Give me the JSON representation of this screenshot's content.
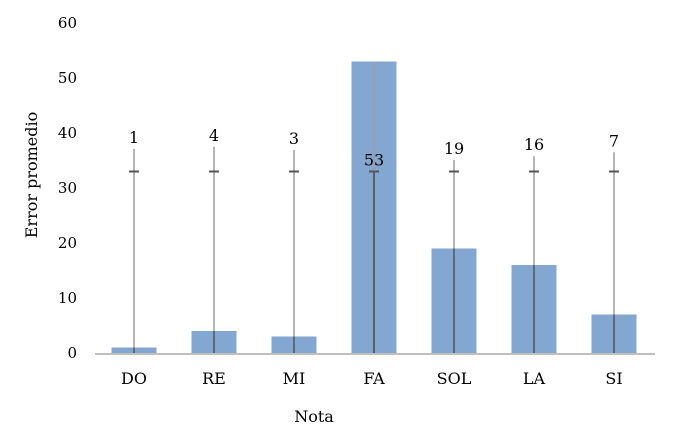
{
  "chart_data": {
    "type": "bar",
    "title": "",
    "xlabel": "Nota",
    "ylabel": "Error promedio",
    "ylim": [
      0,
      60
    ],
    "yticks": [
      0,
      10,
      20,
      30,
      40,
      50,
      60
    ],
    "grid": false,
    "categories": [
      "DO",
      "RE",
      "MI",
      "FA",
      "SOL",
      "LA",
      "SI"
    ],
    "values": [
      1,
      4,
      3,
      53,
      19,
      16,
      7
    ],
    "data_labels": [
      "1",
      "4",
      "3",
      "53",
      "19",
      "16",
      "7"
    ],
    "error_bars": [
      {
        "low": 0,
        "high": 37.1,
        "cap": 33
      },
      {
        "low": 0,
        "high": 37.5,
        "cap": 33
      },
      {
        "low": 0,
        "high": 36.9,
        "cap": 33
      },
      {
        "low": 0,
        "high": 33,
        "cap": 33
      },
      {
        "low": 0,
        "high": 35.1,
        "cap": 33
      },
      {
        "low": 0,
        "high": 35.8,
        "cap": 33
      },
      {
        "low": 0,
        "high": 36.5,
        "cap": 33
      }
    ],
    "colors": {
      "bar": "#84a7d2",
      "error_bar": "#9e9e9e",
      "error_cap": "#555555",
      "axis": "#bfbfbf"
    }
  }
}
